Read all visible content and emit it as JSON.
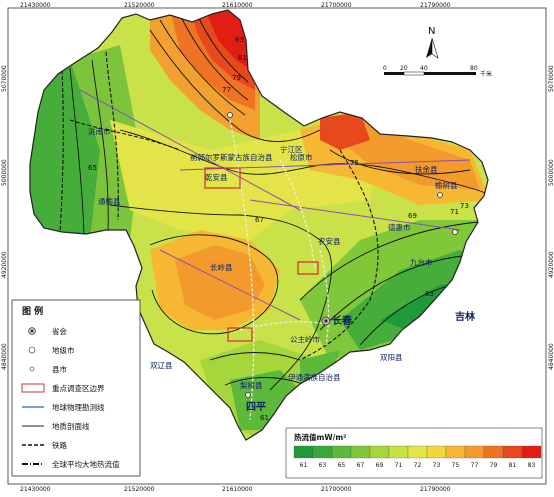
{
  "map": {
    "top_ticks": [
      "21430000",
      "21520000",
      "21610000",
      "21700000",
      "21790000"
    ],
    "bottom_ticks": [
      "21430000",
      "21520000",
      "21610000",
      "21700000",
      "21790000"
    ],
    "left_ticks": [
      "5070000",
      "5000000",
      "4920000",
      "4840000"
    ],
    "right_ticks": [
      "5070000",
      "5000000",
      "4920000",
      "4840000"
    ],
    "north_label": "N",
    "scale": {
      "labels": [
        "0",
        "20",
        "40",
        "80"
      ],
      "unit": "千米"
    },
    "places": [
      {
        "name": "洮南市"
      },
      {
        "name": "前郭尔罗斯蒙古族自治县"
      },
      {
        "name": "松原市"
      },
      {
        "name": "宁江区"
      },
      {
        "name": "扶余县"
      },
      {
        "name": "乾安县"
      },
      {
        "name": "通榆县"
      },
      {
        "name": "长岭县"
      },
      {
        "name": "农安县"
      },
      {
        "name": "德惠市"
      },
      {
        "name": "九台市"
      },
      {
        "name": "榆树县"
      },
      {
        "name": "长春"
      },
      {
        "name": "公主岭市"
      },
      {
        "name": "双辽县"
      },
      {
        "name": "梨树县"
      },
      {
        "name": "四平"
      },
      {
        "name": "伊通满族自治县"
      },
      {
        "name": "双阳县"
      },
      {
        "name": "吉林"
      }
    ],
    "contour_labels": [
      "67",
      "69",
      "71",
      "73",
      "75",
      "77",
      "79",
      "81",
      "83",
      "65",
      "63",
      "61"
    ]
  },
  "legend": {
    "title": "图  例",
    "items": [
      {
        "label": "省会"
      },
      {
        "label": "地级市"
      },
      {
        "label": "县市"
      },
      {
        "label": "重点调查区边界"
      },
      {
        "label": "地球物理勘测线"
      },
      {
        "label": "地质剖面线"
      },
      {
        "label": "铁路"
      },
      {
        "label": "全球平均大地热流值"
      }
    ]
  },
  "heat_legend": {
    "title": "热流值mW/m²",
    "values": [
      "61",
      "63",
      "65",
      "67",
      "69",
      "71",
      "72",
      "73",
      "75",
      "77",
      "79",
      "81",
      "83"
    ],
    "colors": [
      "#1f9a3a",
      "#3aa83a",
      "#5cb93a",
      "#80c83a",
      "#a5d63c",
      "#c8e240",
      "#e4e645",
      "#f3d63c",
      "#f6b833",
      "#f39a2c",
      "#ee7424",
      "#e8491c",
      "#e21e14"
    ]
  }
}
